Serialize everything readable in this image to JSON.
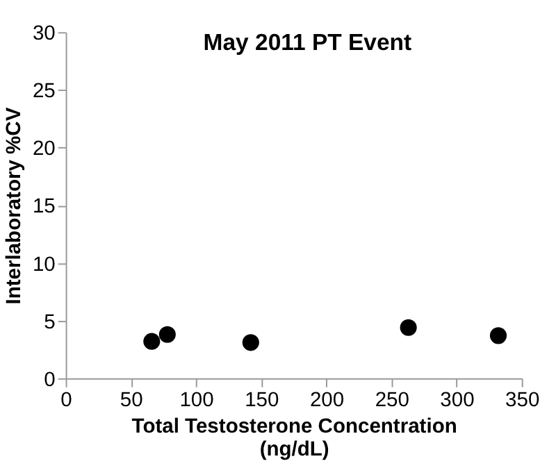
{
  "chart_data": {
    "type": "scatter",
    "title": "May 2011 PT Event",
    "xlabel": "Total Testosterone Concentration\n(ng/dL)",
    "ylabel": "Interlaboratory %CV",
    "x": [
      66,
      78,
      142,
      263,
      332
    ],
    "series": [
      {
        "color": "#000000",
        "values": [
          3.2,
          3.8,
          3.1,
          4.4,
          3.7
        ]
      }
    ],
    "xlim": [
      0,
      350
    ],
    "xticks": [
      0,
      50,
      100,
      150,
      200,
      250,
      300,
      350
    ],
    "ylim": [
      0,
      30
    ],
    "yticks": [
      0,
      5,
      10,
      15,
      20,
      25,
      30
    ],
    "grid": false,
    "marker": "circle"
  }
}
